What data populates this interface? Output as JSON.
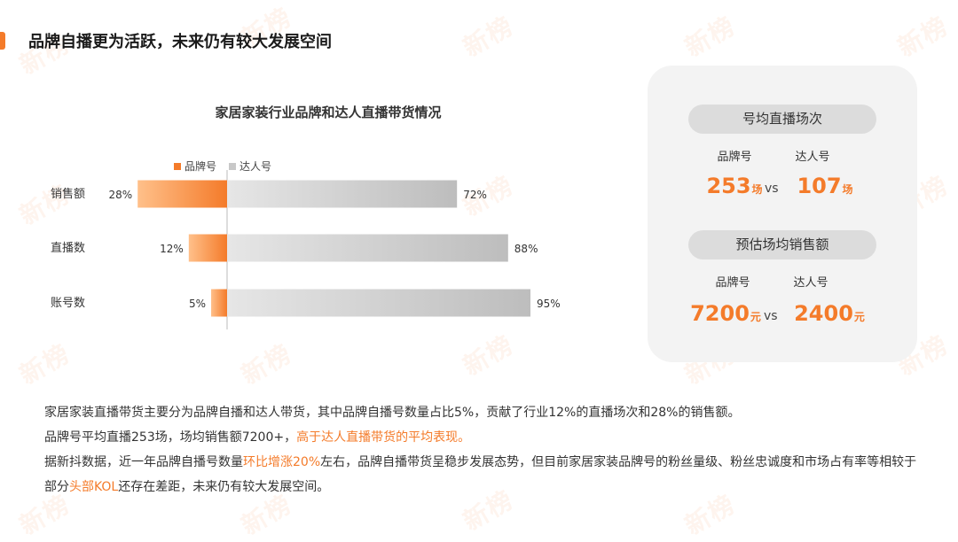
{
  "header": {
    "title": "品牌自播更为活跃，未来仍有较大发展空间"
  },
  "watermark": "新榜",
  "colors": {
    "accent": "#f47b2a",
    "brand_gradient": [
      "#ffc08a",
      "#f47b2a"
    ],
    "influencer_gradient": [
      "#e6e6e6",
      "#bdbdbd"
    ]
  },
  "chart_data": {
    "type": "bar",
    "orientation": "horizontal",
    "stacked": true,
    "title": "家居家装行业品牌和达人直播带货情况",
    "categories": [
      "销售额",
      "直播数",
      "账号数"
    ],
    "series": [
      {
        "name": "品牌号",
        "values": [
          28,
          12,
          5
        ],
        "labels": [
          "28%",
          "12%",
          "5%"
        ]
      },
      {
        "name": "达人号",
        "values": [
          72,
          88,
          95
        ],
        "labels": [
          "72%",
          "88%",
          "95%"
        ]
      }
    ],
    "unit": "%",
    "legend_position": "top"
  },
  "stats": {
    "sessions": {
      "title": "号均直播场次",
      "brand_label": "品牌号",
      "influencer_label": "达人号",
      "brand_value": "253",
      "influencer_value": "107",
      "unit": "场",
      "vs": "vs"
    },
    "sales": {
      "title": "预估场均销售额",
      "brand_label": "品牌号",
      "influencer_label": "达人号",
      "brand_value": "7200",
      "influencer_value": "2400",
      "unit": "元",
      "vs": "vs"
    }
  },
  "body": {
    "p1": "家居家装直播带货主要分为品牌自播和达人带货，其中品牌自播号数量占比5%，贡献了行业12%的直播场次和28%的销售额。",
    "p2_a": "品牌号平均直播253场，场均销售额7200+，",
    "p2_hl": "高于达人直播带货的平均表现。",
    "p3_a": "据新抖数据，近一年品牌自播号数量",
    "p3_hl1": "环比增涨20%",
    "p3_b": "左右，品牌自播带货呈稳步发展态势，但目前家居家装品牌号的粉丝量级、粉丝忠诚度和市场占有率等相较于部分",
    "p3_hl2": "头部KOL",
    "p3_c": "还存在差距，未来仍有较大发展空间。"
  }
}
